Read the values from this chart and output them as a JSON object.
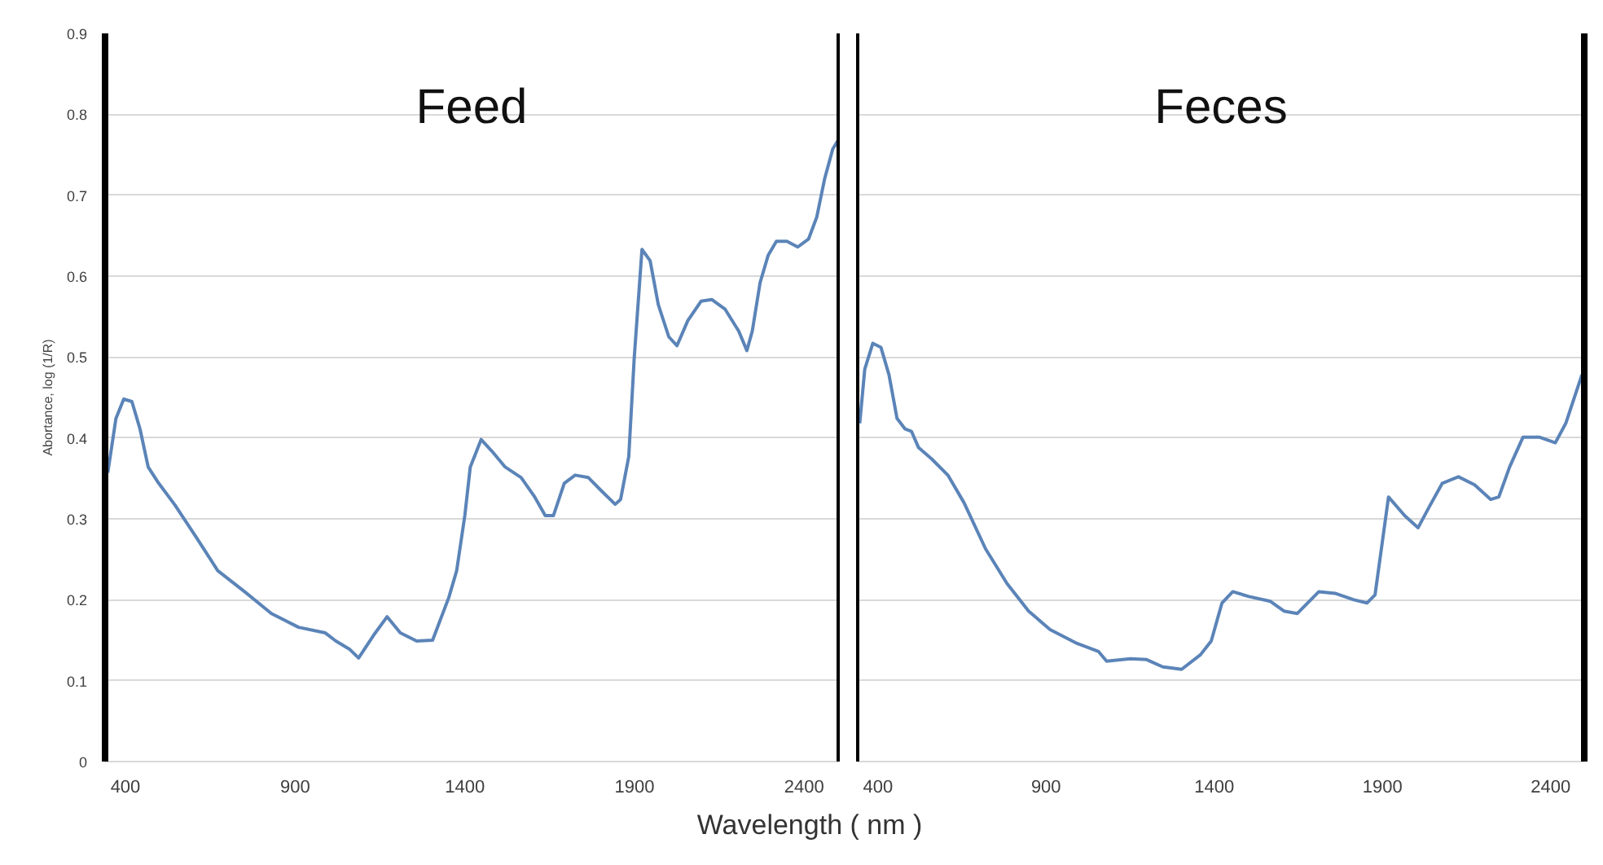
{
  "chart_data": [
    {
      "type": "line",
      "title": "Feed",
      "xlabel": "Wavelength ( nm )",
      "ylabel": "Abortance, log (1/R)",
      "x": [
        348,
        372,
        395,
        419,
        443,
        467,
        498,
        546,
        609,
        672,
        751,
        830,
        910,
        989,
        1020,
        1060,
        1087,
        1131,
        1171,
        1210,
        1258,
        1305,
        1353,
        1376,
        1400,
        1416,
        1448,
        1479,
        1519,
        1566,
        1606,
        1637,
        1661,
        1693,
        1725,
        1764,
        1804,
        1843,
        1859,
        1883,
        1899,
        1922,
        1946,
        1970,
        2001,
        2025,
        2057,
        2096,
        2128,
        2167,
        2207,
        2231,
        2247,
        2270,
        2294,
        2318,
        2349,
        2381,
        2413,
        2437,
        2460,
        2484,
        2500
      ],
      "series": [
        {
          "color": "#5b84b8",
          "values": [
            0.357,
            0.424,
            0.448,
            0.445,
            0.411,
            0.364,
            0.344,
            0.317,
            0.277,
            0.236,
            0.21,
            0.183,
            0.166,
            0.159,
            0.149,
            0.139,
            0.128,
            0.156,
            0.179,
            0.159,
            0.149,
            0.15,
            0.203,
            0.236,
            0.304,
            0.364,
            0.398,
            0.384,
            0.364,
            0.351,
            0.327,
            0.304,
            0.304,
            0.344,
            0.354,
            0.351,
            0.334,
            0.318,
            0.324,
            0.377,
            0.498,
            0.633,
            0.619,
            0.565,
            0.525,
            0.514,
            0.545,
            0.569,
            0.571,
            0.559,
            0.532,
            0.508,
            0.532,
            0.592,
            0.626,
            0.643,
            0.643,
            0.636,
            0.646,
            0.673,
            0.72,
            0.757,
            0.768
          ]
        }
      ],
      "xlim": [
        340,
        2500
      ],
      "xticks": [
        400,
        900,
        1400,
        1900,
        2400
      ],
      "ylim": [
        0,
        0.9
      ],
      "yticks": [
        0,
        0.1,
        0.2,
        0.3,
        0.4,
        0.5,
        0.6,
        0.7,
        0.8,
        0.9
      ],
      "grid": "y"
    },
    {
      "type": "line",
      "title": "Feces",
      "x": [
        346,
        361,
        385,
        409,
        433,
        457,
        481,
        500,
        521,
        560,
        608,
        656,
        720,
        784,
        848,
        912,
        992,
        1056,
        1080,
        1151,
        1199,
        1247,
        1303,
        1359,
        1391,
        1423,
        1455,
        1503,
        1567,
        1607,
        1647,
        1711,
        1759,
        1815,
        1854,
        1878,
        1918,
        1966,
        2006,
        2038,
        2078,
        2126,
        2174,
        2222,
        2246,
        2278,
        2318,
        2366,
        2414,
        2445,
        2493
      ],
      "series": [
        {
          "color": "#5b84b8",
          "values": [
            0.418,
            0.485,
            0.517,
            0.512,
            0.478,
            0.424,
            0.411,
            0.408,
            0.388,
            0.374,
            0.354,
            0.32,
            0.263,
            0.22,
            0.186,
            0.163,
            0.146,
            0.136,
            0.124,
            0.127,
            0.126,
            0.117,
            0.114,
            0.132,
            0.149,
            0.196,
            0.21,
            0.204,
            0.198,
            0.186,
            0.183,
            0.21,
            0.208,
            0.2,
            0.196,
            0.206,
            0.327,
            0.304,
            0.289,
            0.314,
            0.344,
            0.352,
            0.342,
            0.324,
            0.327,
            0.364,
            0.401,
            0.401,
            0.394,
            0.418,
            0.478
          ]
        }
      ],
      "xlim": [
        340,
        2500
      ],
      "xticks": [
        400,
        900,
        1400,
        1900,
        2400
      ],
      "ylim": [
        0,
        0.9
      ],
      "yticks": [
        0,
        0.1,
        0.2,
        0.3,
        0.4,
        0.5,
        0.6,
        0.7,
        0.8,
        0.9
      ],
      "grid": "y",
      "tick_labels": "x"
    }
  ]
}
